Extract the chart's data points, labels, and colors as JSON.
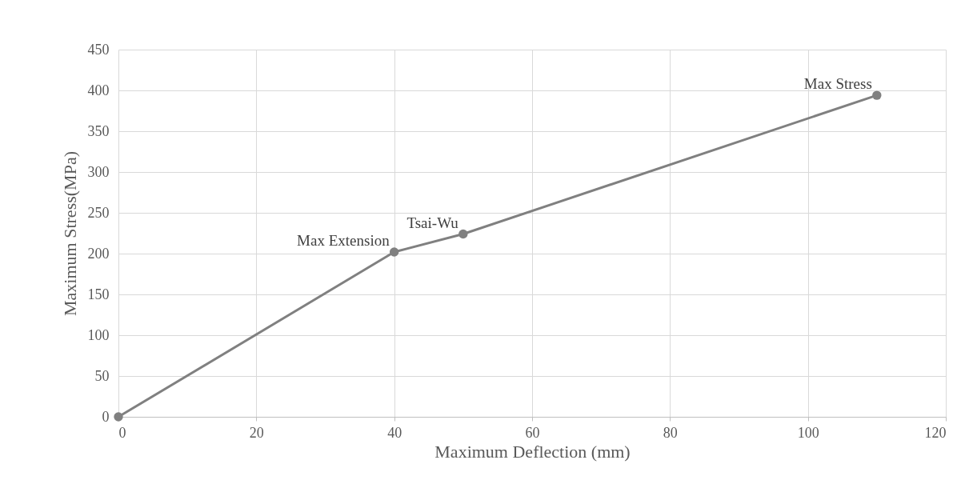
{
  "chart_data": {
    "type": "line",
    "xlabel": "Maximum Deflection (mm)",
    "ylabel": "Maximum Stress(MPa)",
    "x": [
      0,
      40,
      50,
      110
    ],
    "series": [
      {
        "color": "#808080",
        "values": [
          0,
          202,
          224,
          394
        ]
      }
    ],
    "xlim": [
      0,
      120
    ],
    "xticks": [
      0,
      20,
      40,
      60,
      80,
      100,
      120
    ],
    "ylim": [
      0,
      450
    ],
    "yticks": [
      0,
      50,
      100,
      150,
      200,
      250,
      300,
      350,
      400,
      450
    ],
    "grid": true,
    "marker": "circle",
    "line_style": "solid",
    "legend": false,
    "annotations": [
      {
        "text": "Max Extension",
        "x": 40,
        "y": 202
      },
      {
        "text": "Tsai-Wu",
        "x": 50,
        "y": 224
      },
      {
        "text": "Max Stress",
        "x": 110,
        "y": 394
      }
    ]
  }
}
